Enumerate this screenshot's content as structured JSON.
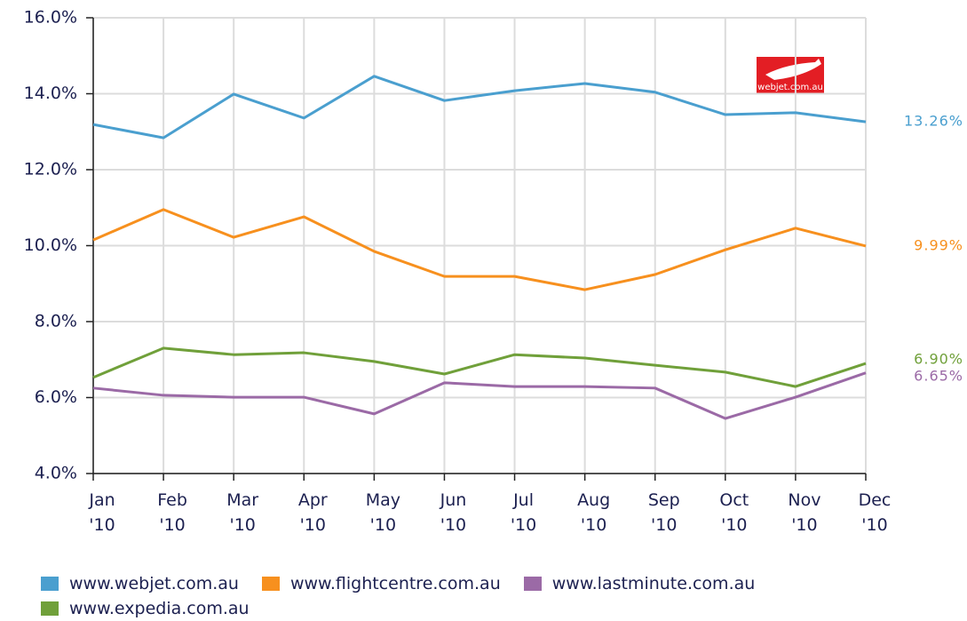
{
  "chart_data": {
    "type": "line",
    "categories": [
      "Jan '10",
      "Feb '10",
      "Mar '10",
      "Apr '10",
      "May '10",
      "Jun '10",
      "Jul '10",
      "Aug '10",
      "Sep '10",
      "Oct '10",
      "Nov '10",
      "Dec '10"
    ],
    "series": [
      {
        "name": "www.webjet.com.au",
        "color": "#4a9fcf",
        "values": [
          13.19,
          12.84,
          13.99,
          13.36,
          14.46,
          13.82,
          14.08,
          14.27,
          14.04,
          13.45,
          13.5,
          13.26
        ],
        "value_labels": [
          null,
          null,
          null,
          null,
          null,
          null,
          null,
          null,
          null,
          null,
          null,
          "13.26%"
        ]
      },
      {
        "name": "www.flightcentre.com.au",
        "color": "#f7901e",
        "values": [
          10.15,
          10.95,
          10.22,
          10.76,
          9.85,
          9.19,
          9.19,
          8.84,
          9.24,
          9.89,
          10.46,
          9.99
        ],
        "value_labels": [
          null,
          null,
          null,
          null,
          null,
          null,
          null,
          null,
          null,
          null,
          null,
          "9.99%"
        ]
      },
      {
        "name": "www.lastminute.com.au",
        "color": "#9b6aa6",
        "values": [
          6.25,
          6.06,
          6.01,
          6.01,
          5.57,
          6.39,
          6.29,
          6.29,
          6.25,
          5.45,
          6.01,
          6.65
        ],
        "value_labels": [
          null,
          null,
          null,
          null,
          null,
          null,
          null,
          null,
          null,
          null,
          null,
          "6.65%"
        ]
      },
      {
        "name": "www.expedia.com.au",
        "color": "#70a03a",
        "values": [
          6.53,
          7.3,
          7.13,
          7.18,
          6.95,
          6.62,
          7.13,
          7.04,
          6.85,
          6.67,
          6.29,
          6.9
        ],
        "value_labels": [
          null,
          null,
          null,
          null,
          null,
          null,
          null,
          null,
          null,
          null,
          null,
          "6.90%"
        ]
      }
    ],
    "ylim": [
      4,
      16
    ],
    "yticks": [
      {
        "value": 4,
        "label": "4.0%"
      },
      {
        "value": 6,
        "label": "6.0%"
      },
      {
        "value": 8,
        "label": "8.0%"
      },
      {
        "value": 10,
        "label": "10.0%"
      },
      {
        "value": 12,
        "label": "12.0%"
      },
      {
        "value": 14,
        "label": "14.0%"
      },
      {
        "value": 16,
        "label": "16.0%"
      }
    ],
    "grid": true,
    "logo_text": "webjet.com.au"
  }
}
